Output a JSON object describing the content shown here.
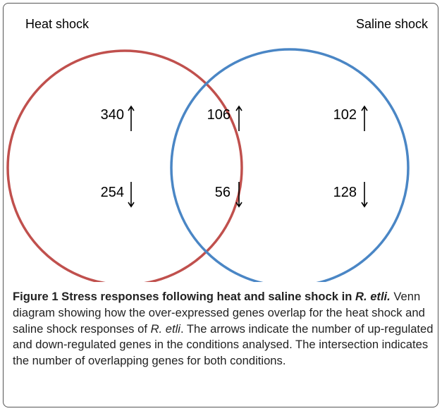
{
  "sets": [
    {
      "label": "Heat shock"
    },
    {
      "label": "Saline shock"
    }
  ],
  "regions": {
    "heat_only": {
      "up": "340",
      "down": "254"
    },
    "both": {
      "up": "106",
      "down": "56"
    },
    "saline_only": {
      "up": "102",
      "down": "128"
    }
  },
  "caption": {
    "title": "Figure 1 Stress responses following heat and saline shock in",
    "title_species": "R. etli.",
    "body_start": "Venn diagram showing how the over-expressed genes overlap for the heat shock and saline shock responses of",
    "body_species": "R. etli",
    "body_end": ". The arrows indicate the number of up-regulated and down-regulated genes in the conditions analysed. The intersection indicates the number of overlapping genes for both conditions."
  }
}
